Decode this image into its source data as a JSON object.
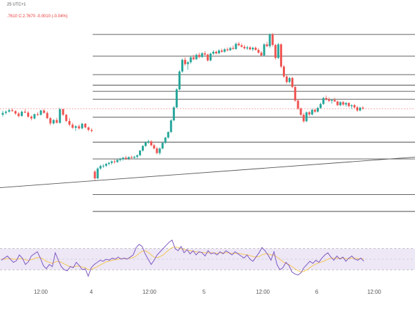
{
  "header": {
    "line1": "25 UTC+1",
    "line2_prefix": ".7610",
    "line2_close": "C:2.7670",
    "line2_change": "-0.0010 (-0.04%)"
  },
  "time_axis": {
    "labels": [
      "12:00",
      "4",
      "12:00",
      "5",
      "12:00",
      "6",
      "12:00"
    ]
  },
  "colors": {
    "up": "#26a69a",
    "down": "#ef5350",
    "level_line": "#2b2b2b",
    "trend_line": "#555555",
    "rsi_line": "#7e57c2",
    "rsi_ma": "#f6c343",
    "rsi_band": "#ede7f6",
    "price_marker": "#ef5350"
  },
  "chart_data": {
    "type": "candlestick",
    "candles": [
      [
        0.0,
        10.0,
        11.3,
        9.4,
        10.6
      ],
      [
        0.9,
        10.6,
        11.4,
        10.1,
        11.0
      ],
      [
        1.8,
        11.0,
        11.9,
        10.7,
        11.5
      ],
      [
        2.7,
        11.5,
        12.1,
        11.0,
        11.2
      ],
      [
        3.6,
        11.2,
        11.4,
        10.0,
        10.4
      ],
      [
        4.5,
        10.4,
        10.9,
        9.1,
        9.6
      ],
      [
        5.4,
        9.6,
        11.3,
        9.4,
        11.0
      ],
      [
        6.3,
        11.0,
        11.8,
        10.5,
        10.7
      ],
      [
        7.2,
        10.7,
        11.2,
        9.0,
        9.4
      ],
      [
        8.1,
        9.4,
        9.8,
        8.2,
        8.8
      ],
      [
        9.0,
        8.8,
        10.4,
        8.5,
        10.2
      ],
      [
        9.9,
        10.2,
        10.8,
        9.6,
        10.0
      ],
      [
        10.8,
        10.0,
        11.6,
        9.7,
        11.4
      ],
      [
        11.7,
        11.4,
        11.8,
        10.4,
        10.6
      ],
      [
        12.6,
        10.6,
        11.1,
        8.6,
        8.9
      ],
      [
        13.5,
        8.9,
        9.3,
        6.6,
        7.2
      ],
      [
        14.4,
        7.2,
        8.6,
        6.9,
        8.3
      ],
      [
        15.3,
        8.3,
        9.0,
        7.2,
        7.4
      ],
      [
        16.2,
        7.4,
        12.2,
        7.1,
        11.8
      ],
      [
        17.1,
        11.8,
        12.0,
        9.6,
        10.0
      ],
      [
        18.0,
        10.0,
        10.3,
        7.6,
        8.0
      ],
      [
        18.9,
        8.0,
        8.9,
        6.3,
        6.8
      ],
      [
        19.8,
        6.8,
        7.4,
        5.4,
        5.8
      ],
      [
        20.7,
        5.8,
        6.6,
        4.8,
        6.3
      ],
      [
        21.6,
        6.3,
        6.9,
        5.2,
        5.6
      ],
      [
        22.5,
        5.6,
        7.4,
        5.3,
        7.1
      ],
      [
        23.4,
        7.1,
        7.3,
        5.6,
        5.9
      ],
      [
        24.3,
        5.9,
        6.2,
        4.6,
        5.1
      ],
      [
        25.2,
        5.1,
        5.6,
        4.3,
        4.8
      ],
      [
        26.1,
        -8.4,
        -7.9,
        -11.2,
        -10.6
      ],
      [
        26.9,
        -10.6,
        -7.0,
        -10.9,
        -7.4
      ],
      [
        27.7,
        -7.4,
        -6.2,
        -7.8,
        -6.6
      ],
      [
        28.5,
        -6.6,
        -6.0,
        -7.2,
        -6.5
      ],
      [
        29.3,
        -6.5,
        -5.6,
        -6.9,
        -5.9
      ],
      [
        30.1,
        -5.9,
        -5.2,
        -6.4,
        -5.6
      ],
      [
        30.9,
        -5.6,
        -4.8,
        -6.1,
        -5.1
      ],
      [
        31.7,
        -5.1,
        -4.5,
        -5.8,
        -5.3
      ],
      [
        32.5,
        -5.3,
        -4.3,
        -5.6,
        -4.6
      ],
      [
        33.3,
        -4.6,
        -3.9,
        -5.2,
        -4.4
      ],
      [
        34.1,
        -4.4,
        -3.6,
        -4.9,
        -3.9
      ],
      [
        34.9,
        -3.9,
        -3.3,
        -4.6,
        -4.2
      ],
      [
        35.7,
        -4.2,
        -3.5,
        -4.7,
        -3.7
      ],
      [
        36.5,
        -3.7,
        -3.2,
        -4.3,
        -3.9
      ],
      [
        37.3,
        -3.9,
        -3.3,
        -4.4,
        -3.6
      ],
      [
        38.1,
        -3.6,
        -2.9,
        -4.1,
        -3.1
      ],
      [
        38.9,
        -3.1,
        -1.4,
        -3.4,
        -1.6
      ],
      [
        39.7,
        -1.6,
        0.2,
        -1.9,
        -0.1
      ],
      [
        40.5,
        -0.1,
        1.4,
        -0.4,
        1.1
      ],
      [
        41.3,
        1.1,
        1.9,
        0.6,
        1.4
      ],
      [
        42.1,
        1.4,
        1.7,
        -0.2,
        0.1
      ],
      [
        42.9,
        0.1,
        0.6,
        -1.2,
        -0.9
      ],
      [
        43.7,
        -0.9,
        -0.4,
        -2.8,
        -2.4
      ],
      [
        44.5,
        -2.4,
        -0.6,
        -3.0,
        -0.9
      ],
      [
        45.3,
        -0.9,
        1.2,
        -1.2,
        0.9
      ],
      [
        46.1,
        0.9,
        2.9,
        0.6,
        2.6
      ],
      [
        46.9,
        2.6,
        4.7,
        2.3,
        4.4
      ],
      [
        47.7,
        4.4,
        8.6,
        4.1,
        8.2
      ],
      [
        48.5,
        8.2,
        12.8,
        7.9,
        12.4
      ],
      [
        49.3,
        12.4,
        18.6,
        12.1,
        18.2
      ],
      [
        50.1,
        18.2,
        24.4,
        17.9,
        24.0
      ],
      [
        50.9,
        24.0,
        28.2,
        23.6,
        27.8
      ],
      [
        51.7,
        27.8,
        28.6,
        25.9,
        26.4
      ],
      [
        52.5,
        26.4,
        27.4,
        24.6,
        27.0
      ],
      [
        53.3,
        27.0,
        29.0,
        26.5,
        28.6
      ],
      [
        54.1,
        28.6,
        29.4,
        27.6,
        28.0
      ],
      [
        54.9,
        28.0,
        29.8,
        27.7,
        29.4
      ],
      [
        55.7,
        29.4,
        30.1,
        28.3,
        28.7
      ],
      [
        56.5,
        28.7,
        30.3,
        28.4,
        29.9
      ],
      [
        57.3,
        29.9,
        30.6,
        29.1,
        29.5
      ],
      [
        58.1,
        29.5,
        29.8,
        27.2,
        27.6
      ],
      [
        58.9,
        27.6,
        30.1,
        27.3,
        29.8
      ],
      [
        59.7,
        29.8,
        30.9,
        29.4,
        30.4
      ],
      [
        60.5,
        30.4,
        30.8,
        29.5,
        29.9
      ],
      [
        61.3,
        29.9,
        31.2,
        29.6,
        30.8
      ],
      [
        62.1,
        30.8,
        31.4,
        30.1,
        30.4
      ],
      [
        62.9,
        30.4,
        31.6,
        30.1,
        31.2
      ],
      [
        63.7,
        31.2,
        31.8,
        30.5,
        30.9
      ],
      [
        64.5,
        30.9,
        32.0,
        30.6,
        31.6
      ],
      [
        65.3,
        31.6,
        32.4,
        31.1,
        31.3
      ],
      [
        66.1,
        31.3,
        33.4,
        31.0,
        33.0
      ],
      [
        66.9,
        33.0,
        33.6,
        32.2,
        32.5
      ],
      [
        67.7,
        32.5,
        33.1,
        31.8,
        32.0
      ],
      [
        68.5,
        32.0,
        32.6,
        31.2,
        31.5
      ],
      [
        69.3,
        31.5,
        32.3,
        31.0,
        31.8
      ],
      [
        70.1,
        31.8,
        32.2,
        30.9,
        31.2
      ],
      [
        70.9,
        31.2,
        32.0,
        30.6,
        31.7
      ],
      [
        71.7,
        31.7,
        32.1,
        30.8,
        31.0
      ],
      [
        72.5,
        31.0,
        31.6,
        29.8,
        30.1
      ],
      [
        73.3,
        30.1,
        30.6,
        28.9,
        29.2
      ],
      [
        74.1,
        29.2,
        33.2,
        28.9,
        32.8
      ],
      [
        74.9,
        32.8,
        33.6,
        31.9,
        32.2
      ],
      [
        75.7,
        32.2,
        36.4,
        31.6,
        36.0
      ],
      [
        76.5,
        36.0,
        36.5,
        32.1,
        32.6
      ],
      [
        77.3,
        32.6,
        33.0,
        27.8,
        28.4
      ],
      [
        78.1,
        28.4,
        33.3,
        28.0,
        32.8
      ],
      [
        78.9,
        32.8,
        33.1,
        25.1,
        25.6
      ],
      [
        79.7,
        25.6,
        26.1,
        22.0,
        22.4
      ],
      [
        80.5,
        22.4,
        22.9,
        20.1,
        20.6
      ],
      [
        81.3,
        20.6,
        22.3,
        20.2,
        21.9
      ],
      [
        82.1,
        21.9,
        22.3,
        18.6,
        19.0
      ],
      [
        82.9,
        19.0,
        19.4,
        14.2,
        14.6
      ],
      [
        83.7,
        14.6,
        15.1,
        11.6,
        12.0
      ],
      [
        84.5,
        12.0,
        12.4,
        9.6,
        10.0
      ],
      [
        85.3,
        10.0,
        10.6,
        7.4,
        7.9
      ],
      [
        86.1,
        7.9,
        11.1,
        7.6,
        10.8
      ],
      [
        86.9,
        10.8,
        11.2,
        9.6,
        10.1
      ],
      [
        87.7,
        10.1,
        12.0,
        9.8,
        11.6
      ],
      [
        88.5,
        11.6,
        12.0,
        10.6,
        11.0
      ],
      [
        89.3,
        11.0,
        12.6,
        10.7,
        12.2
      ],
      [
        90.1,
        12.2,
        13.9,
        11.9,
        13.5
      ],
      [
        90.9,
        13.5,
        15.8,
        13.2,
        15.4
      ],
      [
        91.7,
        15.4,
        16.2,
        14.6,
        15.0
      ],
      [
        92.5,
        15.0,
        15.6,
        14.1,
        14.5
      ],
      [
        93.3,
        14.5,
        15.1,
        13.6,
        14.8
      ],
      [
        94.1,
        14.8,
        15.5,
        14.2,
        14.3
      ],
      [
        94.9,
        14.3,
        14.6,
        12.8,
        13.1
      ],
      [
        95.7,
        13.1,
        14.4,
        12.7,
        14.1
      ],
      [
        96.5,
        14.1,
        14.5,
        12.9,
        13.3
      ],
      [
        97.3,
        13.3,
        14.2,
        12.6,
        13.8
      ],
      [
        98.1,
        13.8,
        14.1,
        12.4,
        12.8
      ],
      [
        98.9,
        12.8,
        13.4,
        11.9,
        13.1
      ],
      [
        99.7,
        13.1,
        13.5,
        12.1,
        12.4
      ],
      [
        100.5,
        12.4,
        12.8,
        11.0,
        11.4
      ],
      [
        101.3,
        11.4,
        12.6,
        11.1,
        12.3
      ],
      [
        102.1,
        12.3,
        12.7,
        11.7,
        12.0
      ]
    ],
    "horizontal_levels": [
      36.0,
      29.0,
      23.0,
      19.6,
      17.6,
      15.0,
      9.2,
      1.1,
      -4.3,
      -15.8,
      -21.3
    ],
    "price_marker": 12.0,
    "trend_line": {
      "from": [
        -2,
        -13.7
      ],
      "to": [
        130,
        -2.6
      ]
    },
    "rsi": {
      "upper": 70,
      "lower": 30,
      "mid": 50,
      "values": [
        48,
        52,
        56,
        50,
        44,
        47,
        58,
        52,
        40,
        45,
        56,
        60,
        64,
        52,
        38,
        32,
        40,
        36,
        62,
        48,
        36,
        30,
        28,
        36,
        34,
        44,
        38,
        30,
        32,
        18,
        34,
        40,
        44,
        48,
        46,
        50,
        48,
        52,
        50,
        54,
        50,
        52,
        50,
        54,
        58,
        72,
        78,
        74,
        60,
        50,
        40,
        48,
        58,
        64,
        70,
        76,
        82,
        86,
        70,
        66,
        74,
        62,
        68,
        60,
        66,
        58,
        64,
        62,
        56,
        66,
        60,
        62,
        58,
        64,
        60,
        66,
        62,
        58,
        64,
        60,
        56,
        52,
        58,
        50,
        46,
        54,
        62,
        72,
        66,
        58,
        48,
        64,
        40,
        30,
        34,
        44,
        38,
        26,
        22,
        20,
        24,
        34,
        40,
        46,
        42,
        48,
        44,
        52,
        58,
        62,
        54,
        48,
        56,
        50,
        54,
        46,
        52,
        56,
        50,
        48,
        52,
        46
      ],
      "ma": [
        50,
        50,
        51,
        51,
        50,
        50,
        51,
        51,
        49,
        48,
        49,
        51,
        53,
        53,
        50,
        46,
        44,
        42,
        45,
        46,
        44,
        41,
        38,
        36,
        35,
        37,
        37,
        35,
        34,
        30,
        31,
        33,
        36,
        39,
        42,
        45,
        46,
        48,
        49,
        50,
        51,
        51,
        51,
        52,
        53,
        56,
        61,
        65,
        66,
        63,
        58,
        54,
        53,
        55,
        58,
        63,
        68,
        72,
        73,
        72,
        70,
        68,
        67,
        66,
        65,
        64,
        63,
        63,
        62,
        62,
        62,
        62,
        61,
        62,
        62,
        62,
        62,
        61,
        61,
        61,
        60,
        59,
        58,
        57,
        55,
        54,
        55,
        58,
        60,
        60,
        58,
        58,
        54,
        50,
        45,
        42,
        40,
        36,
        32,
        28,
        26,
        27,
        30,
        34,
        38,
        41,
        43,
        45,
        47,
        50,
        52,
        52,
        52,
        52,
        52,
        51,
        51,
        52,
        52,
        51,
        51,
        50
      ]
    }
  }
}
